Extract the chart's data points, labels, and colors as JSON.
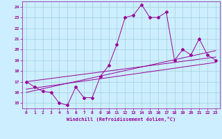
{
  "xlabel": "Windchill (Refroidissement éolien,°C)",
  "xlim": [
    -0.5,
    23.5
  ],
  "ylim": [
    14.5,
    24.5
  ],
  "xticks": [
    0,
    1,
    2,
    3,
    4,
    5,
    6,
    7,
    8,
    9,
    10,
    11,
    12,
    13,
    14,
    15,
    16,
    17,
    18,
    19,
    20,
    21,
    22,
    23
  ],
  "yticks": [
    15,
    16,
    17,
    18,
    19,
    20,
    21,
    22,
    23,
    24
  ],
  "bg_color": "#cceeff",
  "line_color": "#990099",
  "line1_x": [
    0,
    1,
    2,
    3,
    4,
    5,
    6,
    7,
    8,
    9,
    10,
    11,
    12,
    13,
    14,
    15,
    16,
    17,
    18,
    19,
    20,
    21,
    22,
    23
  ],
  "line1_y": [
    17.0,
    16.5,
    16.1,
    16.0,
    15.0,
    14.8,
    16.5,
    15.5,
    15.5,
    17.5,
    18.5,
    20.5,
    23.0,
    23.2,
    24.2,
    23.0,
    23.0,
    23.5,
    19.0,
    20.0,
    19.5,
    21.0,
    19.5,
    19.0
  ],
  "line2_x": [
    0,
    23
  ],
  "line2_y": [
    16.3,
    18.8
  ],
  "line3_x": [
    0,
    23
  ],
  "line3_y": [
    16.0,
    19.9
  ],
  "line4_x": [
    0,
    23
  ],
  "line4_y": [
    17.0,
    19.3
  ]
}
